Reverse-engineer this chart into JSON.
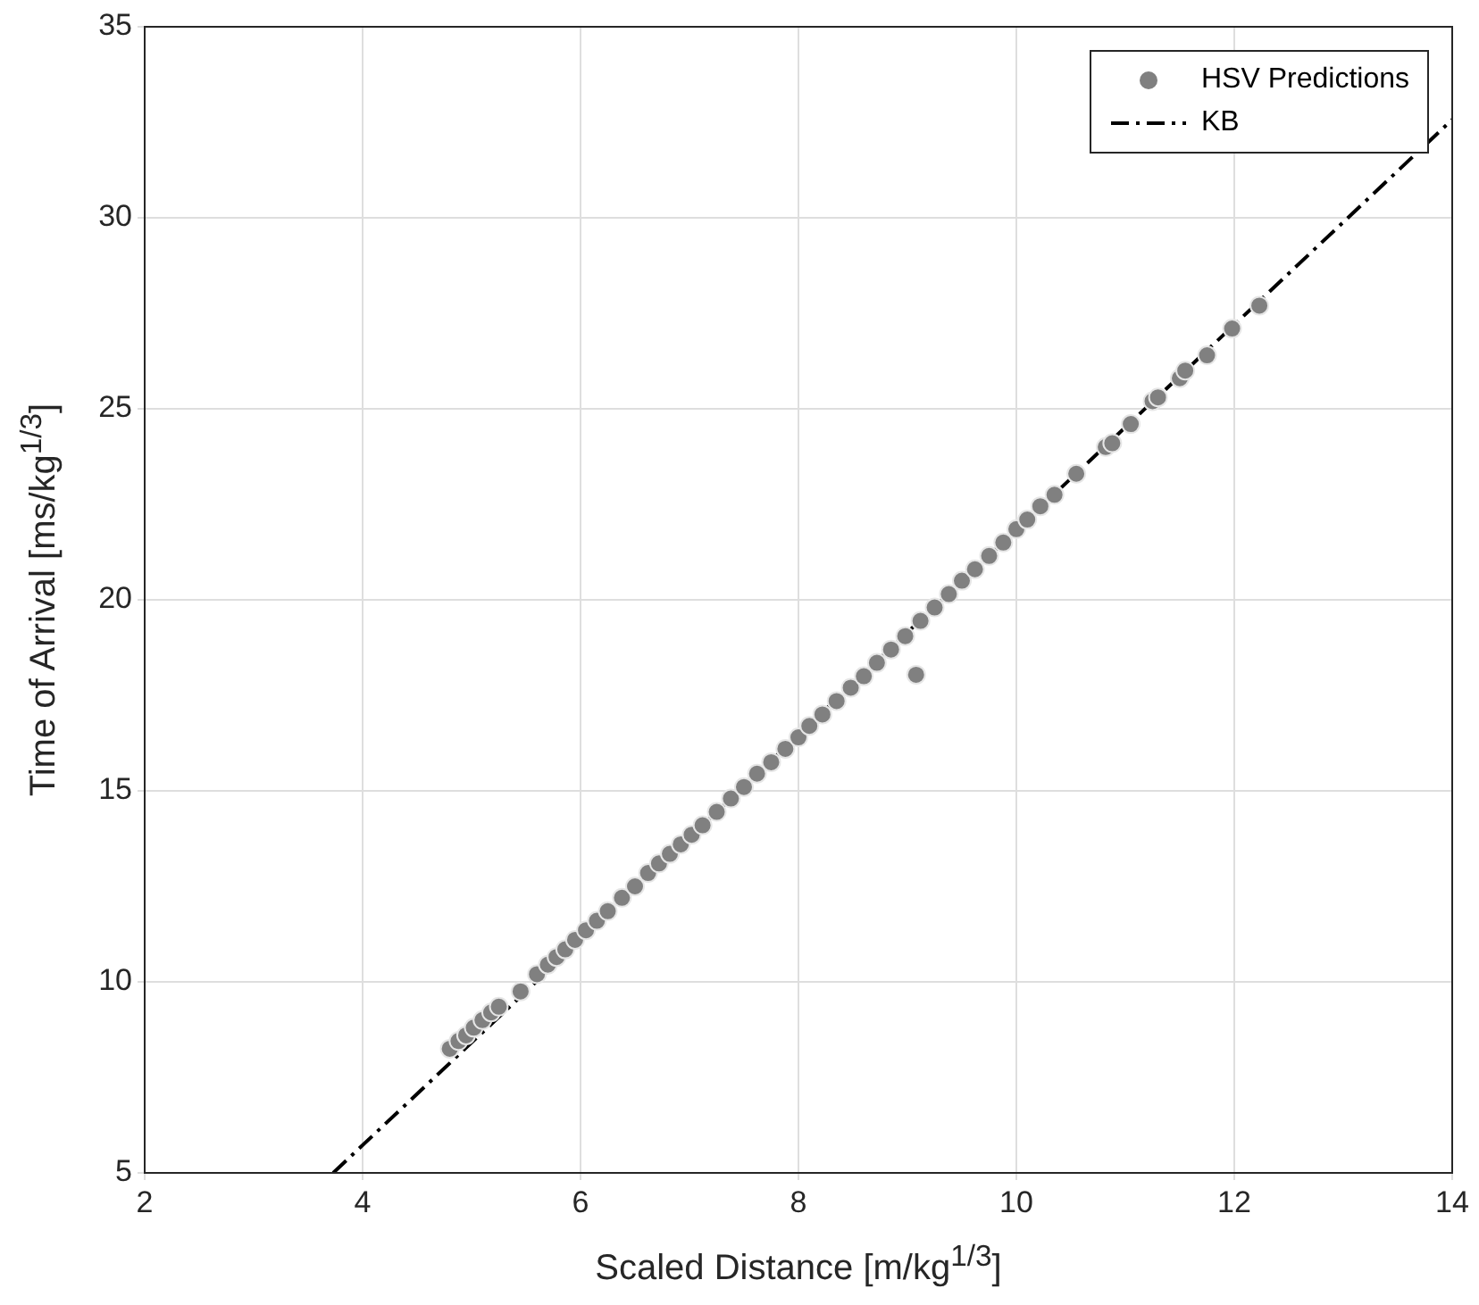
{
  "chart_data": {
    "type": "scatter",
    "xlabel": "Scaled Distance [m/kg$^{1/3}$]",
    "ylabel": "Time of Arrival [ms/kg$^{1/3}$]",
    "xlim": [
      2,
      14
    ],
    "xticks": [
      2,
      4,
      6,
      8,
      10,
      12,
      14
    ],
    "ylim": [
      5,
      35
    ],
    "yticks": [
      5,
      10,
      15,
      20,
      25,
      30,
      35
    ],
    "grid": true,
    "legend": "top right",
    "marker": "circle",
    "series": [
      {
        "name": "HSV Predictions",
        "color": "#808080",
        "x": [
          4.8,
          4.88,
          4.95,
          5.02,
          5.1,
          5.18,
          5.25,
          5.45,
          5.6,
          5.7,
          5.78,
          5.86,
          5.95,
          6.05,
          6.15,
          6.25,
          6.38,
          6.5,
          6.62,
          6.72,
          6.82,
          6.92,
          7.02,
          7.12,
          7.25,
          7.38,
          7.5,
          7.62,
          7.75,
          7.88,
          8.0,
          8.1,
          8.22,
          8.35,
          8.48,
          8.6,
          8.72,
          8.85,
          8.98,
          9.08,
          9.12,
          9.25,
          9.38,
          9.5,
          9.62,
          9.75,
          9.88,
          10.0,
          10.1,
          10.22,
          10.35,
          10.55,
          10.82,
          10.88,
          11.05,
          11.25,
          11.3,
          11.5,
          11.55,
          11.75,
          11.98,
          12.23
        ],
        "values": [
          8.25,
          8.45,
          8.6,
          8.8,
          9.0,
          9.2,
          9.35,
          9.75,
          10.2,
          10.45,
          10.65,
          10.85,
          11.1,
          11.35,
          11.6,
          11.85,
          12.2,
          12.5,
          12.85,
          13.1,
          13.35,
          13.6,
          13.85,
          14.1,
          14.45,
          14.8,
          15.1,
          15.45,
          15.75,
          16.1,
          16.4,
          16.7,
          17.0,
          17.35,
          17.7,
          18.0,
          18.35,
          18.7,
          19.05,
          18.04,
          19.45,
          19.8,
          20.15,
          20.5,
          20.8,
          21.15,
          21.5,
          21.85,
          22.1,
          22.45,
          22.75,
          23.3,
          24.0,
          24.1,
          24.6,
          25.2,
          25.3,
          25.8,
          26.0,
          26.4,
          27.1,
          27.7
        ]
      },
      {
        "name": "KB",
        "type": "line",
        "color": "#000000",
        "line_style": "dashed",
        "marker": "none",
        "x": [
          3.73,
          14
        ],
        "values": [
          5,
          32.57
        ]
      }
    ]
  }
}
